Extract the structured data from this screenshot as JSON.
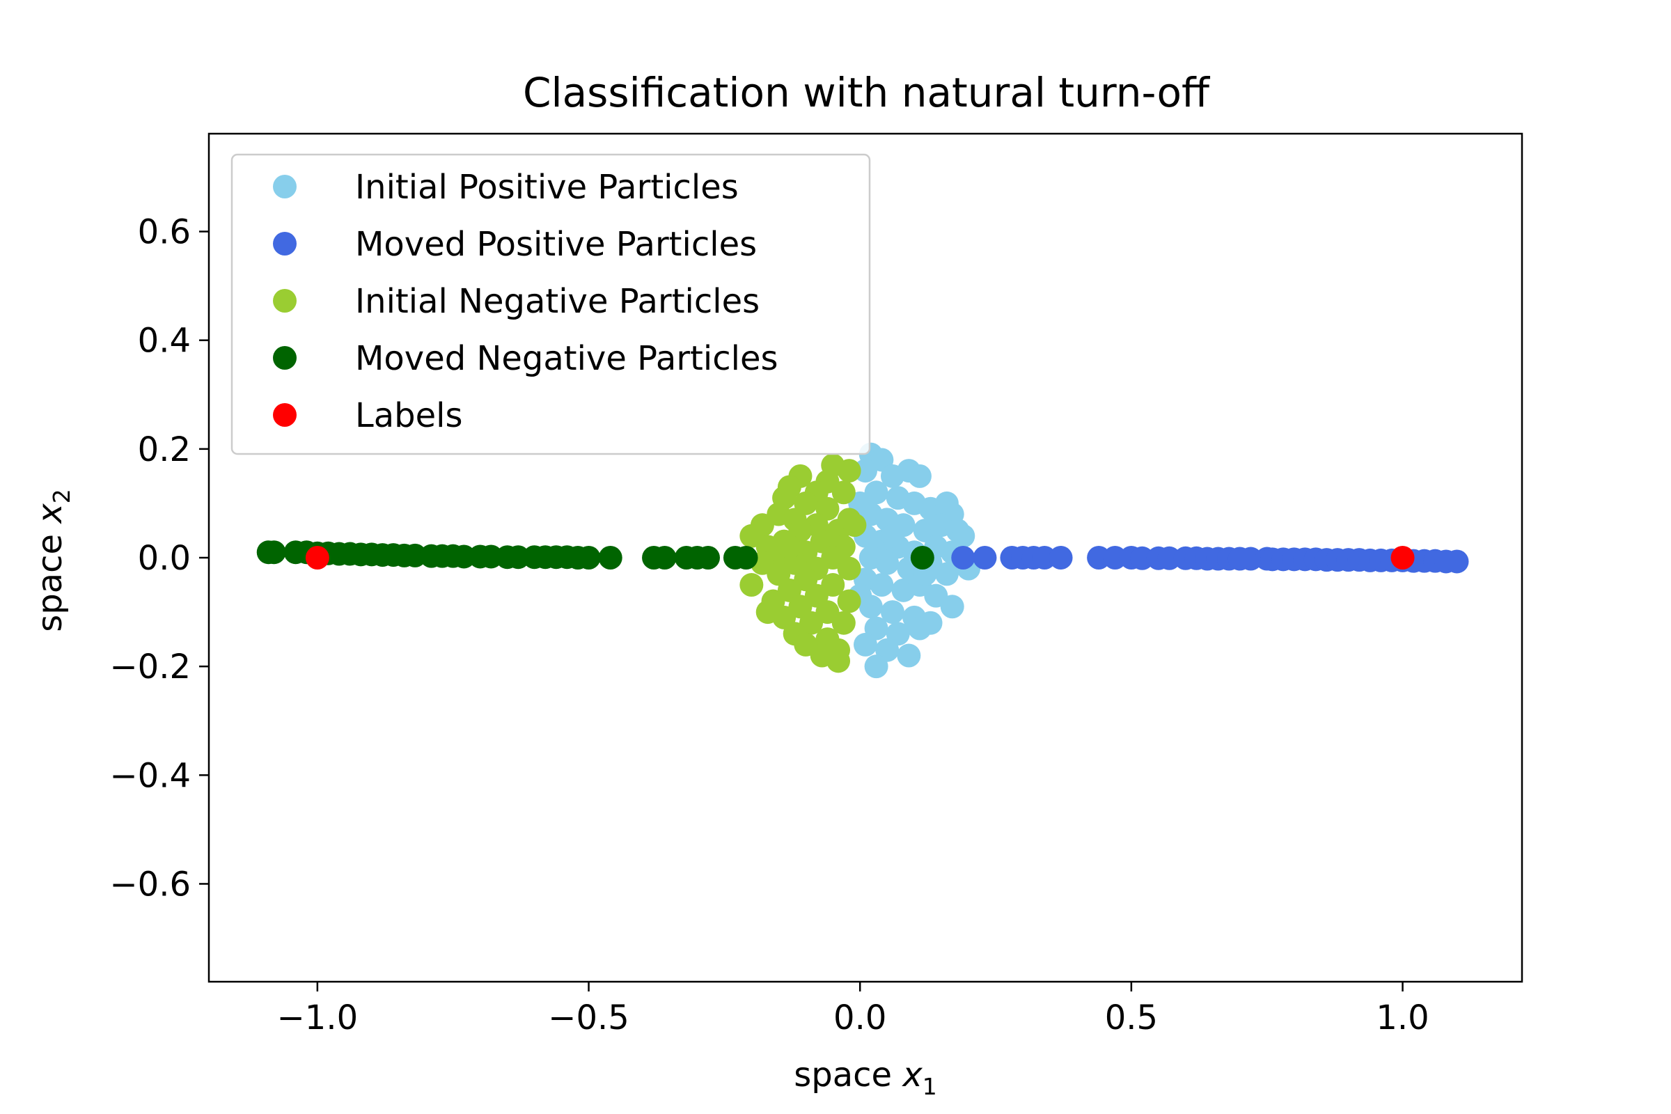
{
  "chart_data": {
    "type": "scatter",
    "title": "Classification with natural turn-off",
    "xlabel": "space",
    "xlabel_var": "x",
    "xlabel_sub": "1",
    "ylabel": "space",
    "ylabel_var": "x",
    "ylabel_sub": "2",
    "xlim": [
      -1.2,
      1.22
    ],
    "ylim": [
      -0.78,
      0.78
    ],
    "xticks": [
      -1.0,
      -0.5,
      0.0,
      0.5,
      1.0
    ],
    "xtick_labels": [
      "−1.0",
      "−0.5",
      "0.0",
      "0.5",
      "1.0"
    ],
    "yticks": [
      0.6,
      0.4,
      0.2,
      0.0,
      -0.2,
      -0.4,
      -0.6
    ],
    "ytick_labels": [
      "0.6",
      "0.4",
      "0.2",
      "0.0",
      "−0.2",
      "−0.4",
      "−0.6"
    ],
    "grid": false,
    "legend_position": "top-left",
    "series": [
      {
        "name": "Initial Positive Particles",
        "color": "#87CEEB",
        "points": [
          [
            0.02,
            0.19
          ],
          [
            0.04,
            0.18
          ],
          [
            0.06,
            0.15
          ],
          [
            0.09,
            0.16
          ],
          [
            0.11,
            0.15
          ],
          [
            0.01,
            0.16
          ],
          [
            0.03,
            0.12
          ],
          [
            0.07,
            0.11
          ],
          [
            0.1,
            0.1
          ],
          [
            0.13,
            0.09
          ],
          [
            0.16,
            0.1
          ],
          [
            0.17,
            0.08
          ],
          [
            0.02,
            0.08
          ],
          [
            0.05,
            0.07
          ],
          [
            0.08,
            0.06
          ],
          [
            0.12,
            0.05
          ],
          [
            0.15,
            0.06
          ],
          [
            0.18,
            0.05
          ],
          [
            0.19,
            0.04
          ],
          [
            0.01,
            0.04
          ],
          [
            0.04,
            0.03
          ],
          [
            0.07,
            0.02
          ],
          [
            0.1,
            0.01
          ],
          [
            0.14,
            0.02
          ],
          [
            0.17,
            0.01
          ],
          [
            0.02,
            0.0
          ],
          [
            0.05,
            -0.01
          ],
          [
            0.09,
            -0.02
          ],
          [
            0.13,
            -0.01
          ],
          [
            0.16,
            -0.03
          ],
          [
            0.2,
            -0.02
          ],
          [
            0.01,
            -0.04
          ],
          [
            0.04,
            -0.05
          ],
          [
            0.08,
            -0.06
          ],
          [
            0.11,
            -0.05
          ],
          [
            0.14,
            -0.07
          ],
          [
            0.17,
            -0.09
          ],
          [
            0.02,
            -0.09
          ],
          [
            0.06,
            -0.1
          ],
          [
            0.1,
            -0.11
          ],
          [
            0.13,
            -0.12
          ],
          [
            0.03,
            -0.13
          ],
          [
            0.07,
            -0.14
          ],
          [
            0.11,
            -0.13
          ],
          [
            0.01,
            -0.16
          ],
          [
            0.05,
            -0.17
          ],
          [
            0.09,
            -0.18
          ],
          [
            0.03,
            -0.2
          ],
          [
            0.0,
            -0.07
          ],
          [
            0.0,
            0.1
          ],
          [
            0.12,
            -0.03
          ],
          [
            0.06,
            0.04
          ]
        ]
      },
      {
        "name": "Moved Positive Particles",
        "color": "#4169E1",
        "points": [
          [
            0.19,
            0.0
          ],
          [
            0.23,
            0.0
          ],
          [
            0.28,
            0.0
          ],
          [
            0.3,
            0.0
          ],
          [
            0.32,
            0.0
          ],
          [
            0.34,
            0.0
          ],
          [
            0.37,
            0.0
          ],
          [
            0.44,
            0.0
          ],
          [
            0.47,
            0.0
          ],
          [
            0.5,
            0.0
          ],
          [
            0.52,
            -0.001
          ],
          [
            0.55,
            -0.001
          ],
          [
            0.57,
            -0.001
          ],
          [
            0.6,
            -0.001
          ],
          [
            0.62,
            -0.001
          ],
          [
            0.64,
            -0.002
          ],
          [
            0.66,
            -0.002
          ],
          [
            0.68,
            -0.002
          ],
          [
            0.7,
            -0.002
          ],
          [
            0.72,
            -0.002
          ],
          [
            0.75,
            -0.002
          ],
          [
            0.76,
            -0.003
          ],
          [
            0.78,
            -0.003
          ],
          [
            0.8,
            -0.003
          ],
          [
            0.82,
            -0.003
          ],
          [
            0.84,
            -0.003
          ],
          [
            0.86,
            -0.004
          ],
          [
            0.88,
            -0.004
          ],
          [
            0.9,
            -0.004
          ],
          [
            0.92,
            -0.004
          ],
          [
            0.94,
            -0.005
          ],
          [
            0.96,
            -0.005
          ],
          [
            0.98,
            -0.005
          ],
          [
            1.0,
            -0.005
          ],
          [
            1.02,
            -0.006
          ],
          [
            1.04,
            -0.006
          ],
          [
            1.06,
            -0.006
          ],
          [
            1.08,
            -0.007
          ],
          [
            1.1,
            -0.007
          ]
        ]
      },
      {
        "name": "Initial Negative Particles",
        "color": "#9ACD32",
        "points": [
          [
            -0.05,
            0.17
          ],
          [
            -0.02,
            0.16
          ],
          [
            -0.11,
            0.15
          ],
          [
            -0.06,
            0.14
          ],
          [
            -0.08,
            0.12
          ],
          [
            -0.13,
            0.13
          ],
          [
            -0.03,
            0.12
          ],
          [
            -0.14,
            0.11
          ],
          [
            -0.1,
            0.1
          ],
          [
            -0.06,
            0.09
          ],
          [
            -0.15,
            0.08
          ],
          [
            -0.12,
            0.07
          ],
          [
            -0.02,
            0.07
          ],
          [
            -0.08,
            0.06
          ],
          [
            -0.18,
            0.06
          ],
          [
            -0.04,
            0.05
          ],
          [
            -0.11,
            0.05
          ],
          [
            -0.2,
            0.04
          ],
          [
            -0.14,
            0.03
          ],
          [
            -0.07,
            0.03
          ],
          [
            -0.03,
            0.02
          ],
          [
            -0.17,
            0.02
          ],
          [
            -0.1,
            0.01
          ],
          [
            -0.15,
            0.0
          ],
          [
            -0.05,
            0.0
          ],
          [
            -0.18,
            -0.01
          ],
          [
            -0.12,
            -0.01
          ],
          [
            -0.08,
            -0.02
          ],
          [
            -0.02,
            -0.02
          ],
          [
            -0.15,
            -0.03
          ],
          [
            -0.1,
            -0.04
          ],
          [
            -0.2,
            -0.05
          ],
          [
            -0.05,
            -0.05
          ],
          [
            -0.13,
            -0.06
          ],
          [
            -0.08,
            -0.07
          ],
          [
            -0.16,
            -0.08
          ],
          [
            -0.02,
            -0.08
          ],
          [
            -0.11,
            -0.09
          ],
          [
            -0.06,
            -0.1
          ],
          [
            -0.17,
            -0.1
          ],
          [
            -0.14,
            -0.11
          ],
          [
            -0.09,
            -0.12
          ],
          [
            -0.03,
            -0.12
          ],
          [
            -0.12,
            -0.14
          ],
          [
            -0.06,
            -0.15
          ],
          [
            -0.1,
            -0.16
          ],
          [
            -0.04,
            -0.17
          ],
          [
            -0.07,
            -0.18
          ],
          [
            -0.04,
            -0.19
          ],
          [
            -0.01,
            0.06
          ],
          [
            -0.13,
            0.02
          ]
        ]
      },
      {
        "name": "Moved Negative Particles",
        "color": "#006400",
        "points": [
          [
            -1.09,
            0.01
          ],
          [
            -1.08,
            0.01
          ],
          [
            -1.04,
            0.01
          ],
          [
            -1.02,
            0.01
          ],
          [
            -1.0,
            0.008
          ],
          [
            -0.98,
            0.008
          ],
          [
            -0.96,
            0.007
          ],
          [
            -0.94,
            0.007
          ],
          [
            -0.92,
            0.006
          ],
          [
            -0.9,
            0.006
          ],
          [
            -0.88,
            0.005
          ],
          [
            -0.86,
            0.005
          ],
          [
            -0.84,
            0.004
          ],
          [
            -0.82,
            0.004
          ],
          [
            -0.79,
            0.003
          ],
          [
            -0.77,
            0.003
          ],
          [
            -0.75,
            0.003
          ],
          [
            -0.73,
            0.002
          ],
          [
            -0.7,
            0.002
          ],
          [
            -0.68,
            0.002
          ],
          [
            -0.65,
            0.001
          ],
          [
            -0.63,
            0.001
          ],
          [
            -0.6,
            0.001
          ],
          [
            -0.58,
            0.001
          ],
          [
            -0.56,
            0.001
          ],
          [
            -0.54,
            0.001
          ],
          [
            -0.52,
            0.0
          ],
          [
            -0.5,
            0.0
          ],
          [
            -0.46,
            0.0
          ],
          [
            -0.38,
            0.0
          ],
          [
            -0.36,
            0.0
          ],
          [
            -0.32,
            0.0
          ],
          [
            -0.3,
            0.0
          ],
          [
            -0.28,
            0.0
          ],
          [
            -0.23,
            0.0
          ],
          [
            -0.21,
            0.0
          ],
          [
            0.115,
            0.0
          ]
        ]
      },
      {
        "name": "Labels",
        "color": "#FF0000",
        "points": [
          [
            -1.0,
            0.0
          ],
          [
            1.0,
            0.0
          ]
        ]
      }
    ]
  }
}
